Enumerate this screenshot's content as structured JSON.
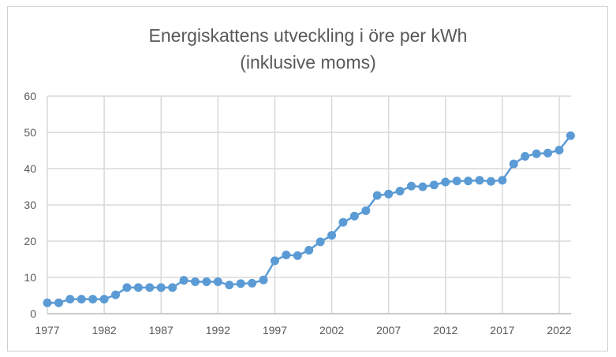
{
  "chart_data": {
    "type": "line",
    "title": [
      "Energiskattens utveckling i öre per kWh",
      "(inklusive moms)"
    ],
    "xlabel": "",
    "ylabel": "",
    "x": [
      1977,
      1978,
      1979,
      1980,
      1981,
      1982,
      1983,
      1984,
      1985,
      1986,
      1987,
      1988,
      1989,
      1990,
      1991,
      1992,
      1993,
      1994,
      1995,
      1996,
      1997,
      1998,
      1999,
      2000,
      2001,
      2002,
      2003,
      2004,
      2005,
      2006,
      2007,
      2008,
      2009,
      2010,
      2011,
      2012,
      2013,
      2014,
      2015,
      2016,
      2017,
      2018,
      2019,
      2020,
      2021,
      2022,
      2023
    ],
    "values": [
      3.0,
      3.0,
      4.0,
      4.0,
      4.0,
      4.0,
      5.2,
      7.2,
      7.2,
      7.2,
      7.2,
      7.2,
      9.2,
      8.8,
      8.8,
      8.8,
      7.9,
      8.3,
      8.4,
      9.3,
      14.6,
      16.2,
      16.0,
      17.5,
      19.8,
      21.6,
      25.2,
      26.9,
      28.4,
      32.6,
      33.0,
      33.8,
      35.2,
      35.0,
      35.5,
      36.3,
      36.6,
      36.6,
      36.8,
      36.5,
      36.8,
      41.3,
      43.4,
      44.1,
      44.3,
      45.1,
      49.1
    ],
    "x_tick_labels": [
      "1977",
      "1982",
      "1987",
      "1992",
      "1997",
      "2002",
      "2007",
      "2012",
      "2017",
      "2022"
    ],
    "y_tick_labels": [
      "0",
      "10",
      "20",
      "30",
      "40",
      "50",
      "60"
    ],
    "ylim": [
      0,
      60
    ],
    "grid": true,
    "legend": "none",
    "series_color": "#5B9BD5"
  }
}
